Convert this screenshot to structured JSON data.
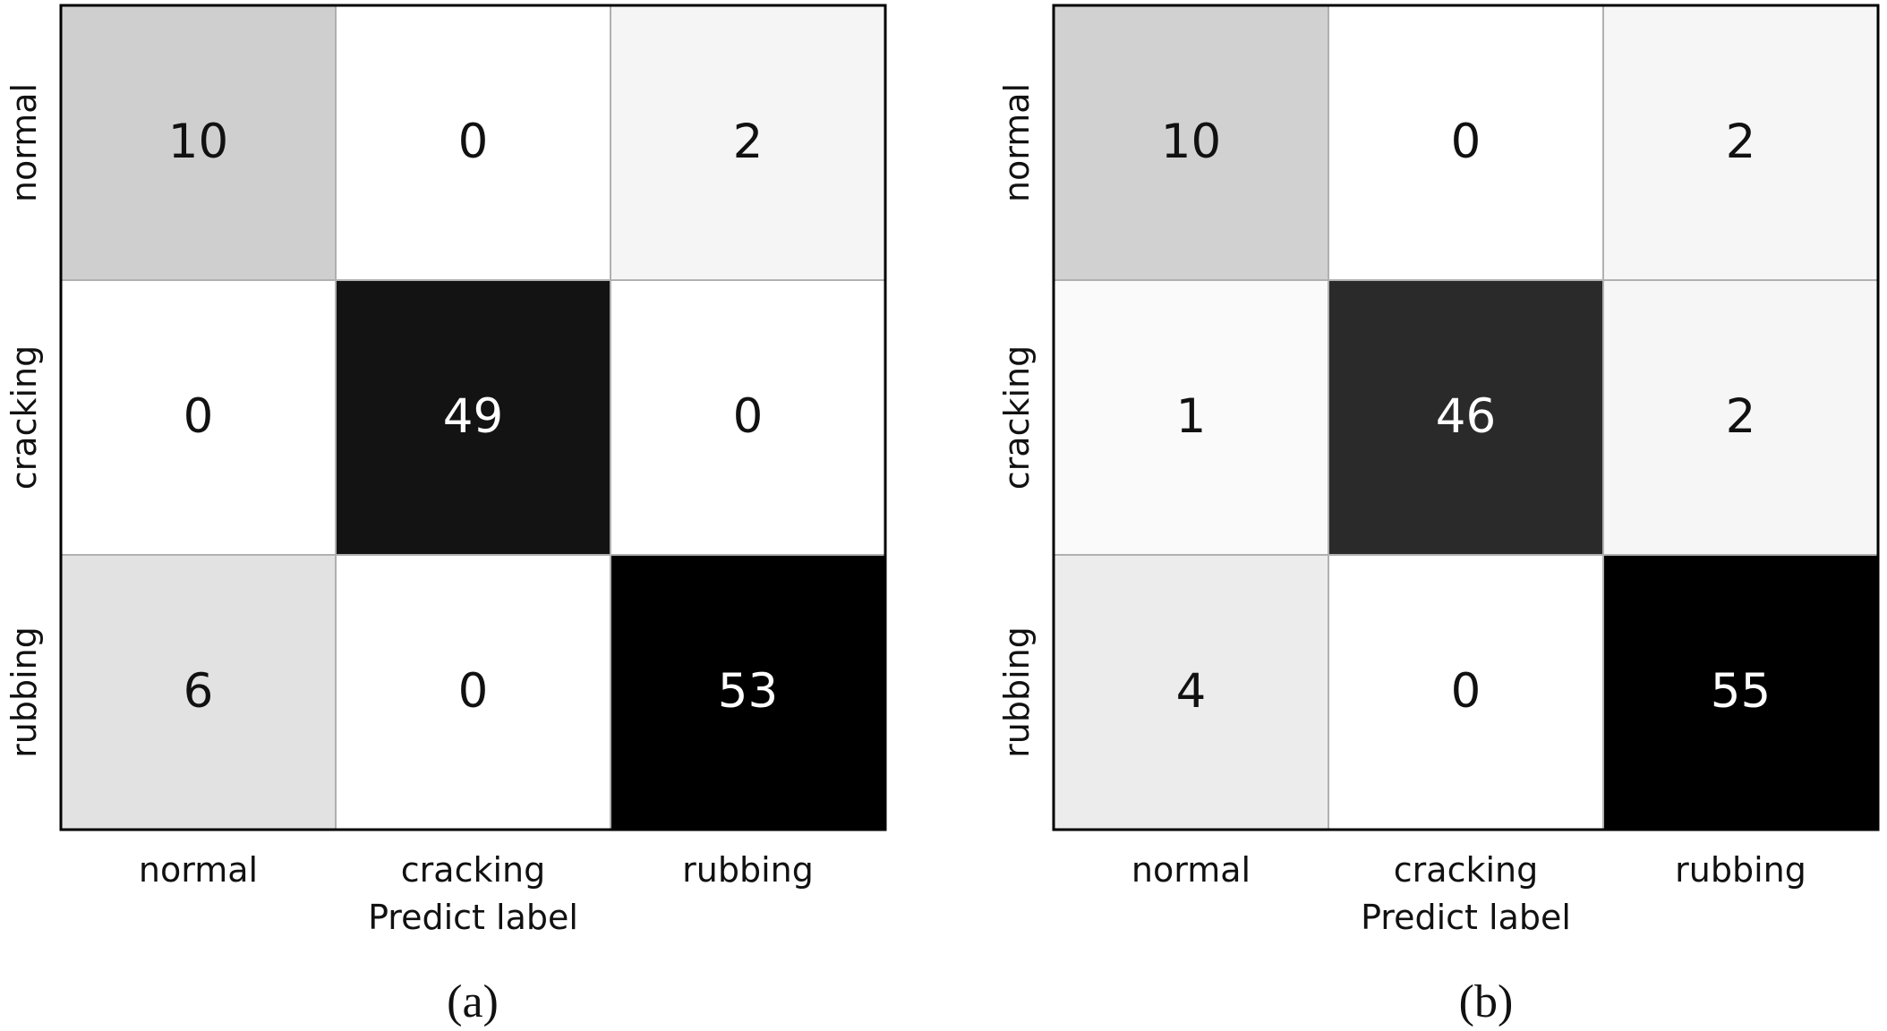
{
  "chart_data": [
    {
      "type": "heatmap",
      "panel_label": "(a)",
      "row_labels": [
        "normal",
        "cracking",
        "rubbing"
      ],
      "col_labels": [
        "normal",
        "cracking",
        "rubbing"
      ],
      "xlabel": "Predict label",
      "ylabel": "",
      "colormap": "grayscale (white = low, black = high)",
      "vmax": 53,
      "values": [
        [
          10,
          0,
          2
        ],
        [
          0,
          49,
          0
        ],
        [
          6,
          0,
          53
        ]
      ]
    },
    {
      "type": "heatmap",
      "panel_label": "(b)",
      "row_labels": [
        "normal",
        "cracking",
        "rubbing"
      ],
      "col_labels": [
        "normal",
        "cracking",
        "rubbing"
      ],
      "xlabel": "Predict label",
      "ylabel": "",
      "colormap": "grayscale (white = low, black = high)",
      "vmax": 55,
      "values": [
        [
          10,
          0,
          2
        ],
        [
          1,
          46,
          2
        ],
        [
          4,
          0,
          55
        ]
      ]
    }
  ]
}
